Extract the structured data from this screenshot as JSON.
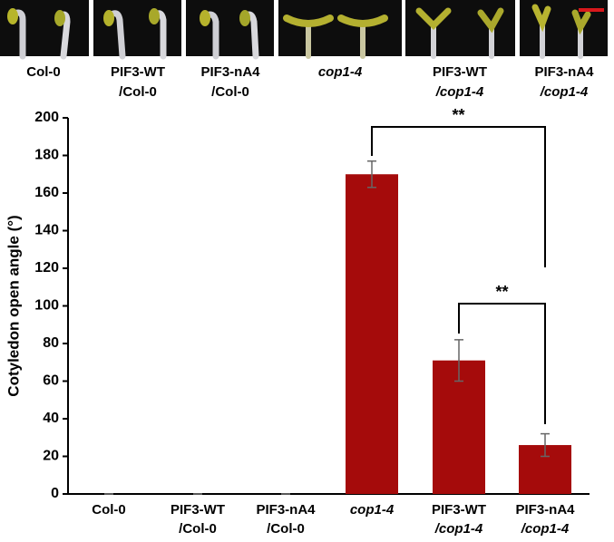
{
  "chart_data": {
    "type": "bar",
    "y_label": "Cotyledon open angle (°)",
    "categories": [
      "Col-0",
      "PIF3-WT\n/Col-0",
      "PIF3-nA4\n/Col-0",
      "cop1-4",
      "PIF3-WT\n/cop1-4",
      "PIF3-nA4\n/cop1-4"
    ],
    "category_italic_lines": [
      [],
      [],
      [],
      [
        0
      ],
      [
        1
      ],
      [
        1
      ]
    ],
    "values": [
      0,
      0,
      0,
      170,
      71,
      26
    ],
    "errors": [
      0,
      0,
      0,
      7,
      11,
      6
    ],
    "color": "#a50b0b",
    "ylim": [
      0,
      200
    ],
    "yticks": [
      0,
      20,
      40,
      60,
      80,
      100,
      120,
      140,
      160,
      180,
      200
    ],
    "significance": [
      {
        "from": 3,
        "to": 5,
        "label": "**"
      },
      {
        "from": 4,
        "to": 5,
        "label": "**"
      }
    ]
  }
}
